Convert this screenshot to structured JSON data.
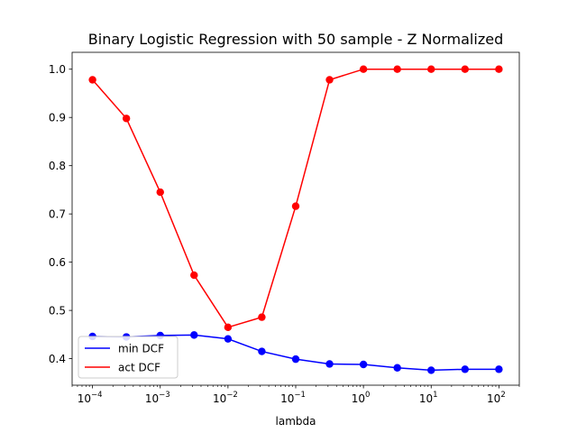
{
  "chart_data": {
    "type": "line",
    "title": "Binary Logistic Regression with 50 sample - Z Normalized",
    "xlabel": "lambda",
    "ylabel": "",
    "xscale": "log",
    "xlim": [
      5e-05,
      200
    ],
    "ylim": [
      0.345,
      1.035
    ],
    "grid": false,
    "legend_position": "lower-left",
    "x": [
      0.0001,
      0.000316,
      0.001,
      0.00316,
      0.01,
      0.0316,
      0.1,
      0.316,
      1,
      3.16,
      10,
      31.6,
      100
    ],
    "x_ticks": [
      {
        "value": 0.0001,
        "base": "10",
        "exp": "−4"
      },
      {
        "value": 0.001,
        "base": "10",
        "exp": "−3"
      },
      {
        "value": 0.01,
        "base": "10",
        "exp": "−2"
      },
      {
        "value": 0.1,
        "base": "10",
        "exp": "−1"
      },
      {
        "value": 1,
        "base": "10",
        "exp": "0"
      },
      {
        "value": 10,
        "base": "10",
        "exp": "1"
      },
      {
        "value": 100,
        "base": "10",
        "exp": "2"
      }
    ],
    "y_ticks": [
      {
        "value": 0.4,
        "label": "0.4"
      },
      {
        "value": 0.5,
        "label": "0.5"
      },
      {
        "value": 0.6,
        "label": "0.6"
      },
      {
        "value": 0.7,
        "label": "0.7"
      },
      {
        "value": 0.8,
        "label": "0.8"
      },
      {
        "value": 0.9,
        "label": "0.9"
      },
      {
        "value": 1.0,
        "label": "1.0"
      }
    ],
    "series": [
      {
        "name": "min DCF",
        "color": "#0000ff",
        "values": [
          0.446,
          0.445,
          0.448,
          0.449,
          0.441,
          0.415,
          0.399,
          0.389,
          0.388,
          0.381,
          0.376,
          0.378,
          0.378
        ]
      },
      {
        "name": "act DCF",
        "color": "#ff0000",
        "values": [
          0.978,
          0.898,
          0.745,
          0.573,
          0.465,
          0.486,
          0.716,
          0.978,
          1.0,
          1.0,
          1.0,
          1.0,
          1.0
        ]
      }
    ]
  }
}
